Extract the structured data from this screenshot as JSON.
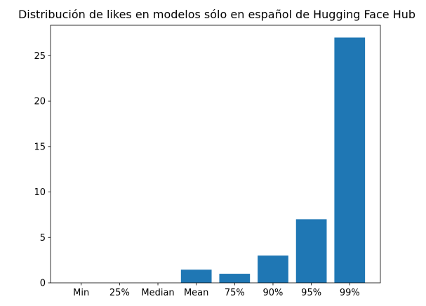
{
  "chart_data": {
    "type": "bar",
    "title": "Distribución de likes en modelos sólo en español de Hugging Face Hub",
    "xlabel": "",
    "ylabel": "",
    "categories": [
      "Min",
      "25%",
      "Median",
      "Mean",
      "75%",
      "90%",
      "95%",
      "99%"
    ],
    "values": [
      0,
      0,
      0,
      1.45,
      1,
      3,
      7,
      27
    ],
    "ylim": [
      0,
      28.35
    ],
    "yticks": [
      0,
      5,
      10,
      15,
      20,
      25
    ],
    "grid": false,
    "colors": {
      "bar": "#1f77b4",
      "axis": "#000000",
      "background": "#ffffff"
    }
  }
}
